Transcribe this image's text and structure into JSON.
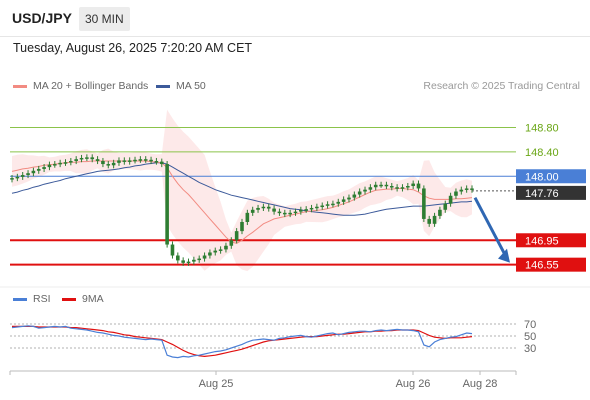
{
  "header": {
    "symbol": "USD/JPY",
    "timeframe": "30 MIN",
    "datetime": "Tuesday, August 26, 2025 7:20:20 AM CET"
  },
  "legend": {
    "ma20_label": "MA 20 + Bollinger Bands",
    "ma50_label": "MA 50",
    "credit": "Research © 2025 Trading Central"
  },
  "colors": {
    "ma20": "#f28b82",
    "ma50": "#3c5a9a",
    "bollinger_fill": "#fde4e4",
    "candle": "#2e7d32",
    "resistance": "#8bc34a",
    "pivot": "#4a7fd6",
    "support": "#e01010",
    "current": "#333333",
    "rsi": "#4a7fd6",
    "rsi_ma": "#e01010"
  },
  "chart_data": [
    {
      "type": "line",
      "title": "USD/JPY 30 MIN",
      "x_labels": [
        "Aug 25",
        "Aug 26",
        "Aug 28"
      ],
      "ylim": [
        146.2,
        149.3
      ],
      "series": [
        {
          "name": "Close",
          "values": [
            147.97,
            147.99,
            148.02,
            148.05,
            148.09,
            148.12,
            148.15,
            148.19,
            148.2,
            148.22,
            148.23,
            148.25,
            148.28,
            148.3,
            148.31,
            148.28,
            148.25,
            148.2,
            148.18,
            148.22,
            148.26,
            148.24,
            148.26,
            148.27,
            148.28,
            148.27,
            148.25,
            148.24,
            148.2,
            146.88,
            146.7,
            146.62,
            146.58,
            146.6,
            146.63,
            146.65,
            146.7,
            146.75,
            146.78,
            146.8,
            146.86,
            146.95,
            147.1,
            147.25,
            147.4,
            147.45,
            147.48,
            147.5,
            147.47,
            147.42,
            147.4,
            147.38,
            147.4,
            147.42,
            147.45,
            147.46,
            147.48,
            147.5,
            147.52,
            147.54,
            147.55,
            147.58,
            147.62,
            147.65,
            147.7,
            147.75,
            147.78,
            147.82,
            147.86,
            147.86,
            147.84,
            147.82,
            147.8,
            147.82,
            147.84,
            147.88,
            147.8,
            147.3,
            147.22,
            147.35,
            147.45,
            147.55,
            147.68,
            147.75,
            147.78,
            147.8,
            147.78
          ]
        },
        {
          "name": "MA 20",
          "values": [
            148.08,
            148.1,
            148.12,
            148.13,
            148.15,
            148.16,
            148.18,
            148.19,
            148.2,
            148.21,
            148.22,
            148.23,
            148.23,
            148.24,
            148.24,
            148.25,
            148.25,
            148.25,
            148.25,
            148.25,
            148.25,
            148.25,
            148.25,
            148.25,
            148.25,
            148.25,
            148.24,
            148.23,
            148.22,
            148.14,
            148.0,
            147.88,
            147.78,
            147.7,
            147.6,
            147.5,
            147.4,
            147.3,
            147.2,
            147.1,
            147.0,
            146.92,
            146.9,
            146.95,
            147.02,
            147.08,
            147.15,
            147.22,
            147.26,
            147.3,
            147.32,
            147.34,
            147.36,
            147.38,
            147.4,
            147.42,
            147.43,
            147.44,
            147.45,
            147.47,
            147.49,
            147.52,
            147.55,
            147.58,
            147.62,
            147.66,
            147.7,
            147.74,
            147.77,
            147.78,
            147.79,
            147.79,
            147.8,
            147.8,
            147.79,
            147.78,
            147.74,
            147.68,
            147.64,
            147.62,
            147.62,
            147.62,
            147.62,
            147.63,
            147.63,
            147.64,
            147.65
          ]
        },
        {
          "name": "MA 50",
          "values": [
            147.72,
            147.74,
            147.77,
            147.79,
            147.82,
            147.84,
            147.87,
            147.89,
            147.91,
            147.93,
            147.96,
            147.98,
            148.0,
            148.02,
            148.04,
            148.06,
            148.08,
            148.09,
            148.1,
            148.11,
            148.12,
            148.14,
            148.15,
            148.17,
            148.18,
            148.2,
            148.21,
            148.22,
            148.22,
            148.2,
            148.15,
            148.1,
            148.05,
            148.0,
            147.95,
            147.9,
            147.86,
            147.82,
            147.78,
            147.75,
            147.72,
            147.69,
            147.67,
            147.65,
            147.63,
            147.61,
            147.59,
            147.57,
            147.55,
            147.53,
            147.51,
            147.49,
            147.47,
            147.46,
            147.45,
            147.43,
            147.42,
            147.41,
            147.4,
            147.39,
            147.38,
            147.37,
            147.36,
            147.36,
            147.36,
            147.37,
            147.38,
            147.4,
            147.42,
            147.44,
            147.46,
            147.47,
            147.48,
            147.49,
            147.5,
            147.51,
            147.51,
            147.51,
            147.52,
            147.53,
            147.54,
            147.55,
            147.56,
            147.57,
            147.58,
            147.58,
            147.59
          ]
        }
      ],
      "levels": [
        {
          "label": "148.80",
          "value": 148.8,
          "kind": "resistance"
        },
        {
          "label": "148.40",
          "value": 148.4,
          "kind": "resistance"
        },
        {
          "label": "148.00",
          "value": 148.0,
          "kind": "pivot"
        },
        {
          "label": "147.76",
          "value": 147.76,
          "kind": "current"
        },
        {
          "label": "146.95",
          "value": 146.95,
          "kind": "support"
        },
        {
          "label": "146.55",
          "value": 146.55,
          "kind": "support"
        }
      ],
      "projection": {
        "from": 147.78,
        "to": 146.55
      }
    },
    {
      "type": "line",
      "title": "",
      "ylim": [
        0,
        100
      ],
      "tick_labels": [
        "70",
        "50",
        "30"
      ],
      "series": [
        {
          "name": "RSI",
          "values": [
            64,
            65,
            66,
            67,
            66,
            63,
            64,
            65,
            66,
            65,
            66,
            63,
            62,
            61,
            60,
            58,
            56,
            55,
            53,
            51,
            50,
            48,
            47,
            46,
            45,
            44,
            45,
            44,
            43,
            18,
            15,
            14,
            16,
            15,
            17,
            18,
            20,
            22,
            24,
            25,
            27,
            30,
            33,
            36,
            40,
            43,
            44,
            45,
            44,
            43,
            46,
            47,
            49,
            50,
            51,
            49,
            48,
            50,
            52,
            54,
            55,
            52,
            54,
            56,
            57,
            58,
            58,
            57,
            59,
            60,
            59,
            60,
            61,
            60,
            60,
            59,
            57,
            35,
            32,
            40,
            44,
            46,
            48,
            49,
            52,
            55,
            54
          ]
        },
        {
          "name": "9MA",
          "values": [
            66,
            66,
            66,
            66,
            66,
            65,
            65,
            65,
            65,
            65,
            65,
            64,
            64,
            63,
            62,
            61,
            60,
            59,
            57,
            56,
            54,
            52,
            51,
            49,
            48,
            47,
            46,
            45,
            44,
            40,
            36,
            31,
            26,
            22,
            19,
            17,
            16,
            17,
            18,
            20,
            22,
            24,
            26,
            28,
            31,
            34,
            37,
            40,
            42,
            43,
            44,
            45,
            46,
            47,
            48,
            49,
            49,
            49,
            50,
            51,
            52,
            53,
            53,
            54,
            55,
            56,
            57,
            57,
            58,
            58,
            59,
            59,
            60,
            60,
            60,
            60,
            59,
            55,
            51,
            48,
            47,
            46,
            47,
            47,
            47,
            48,
            49
          ]
        }
      ]
    }
  ]
}
